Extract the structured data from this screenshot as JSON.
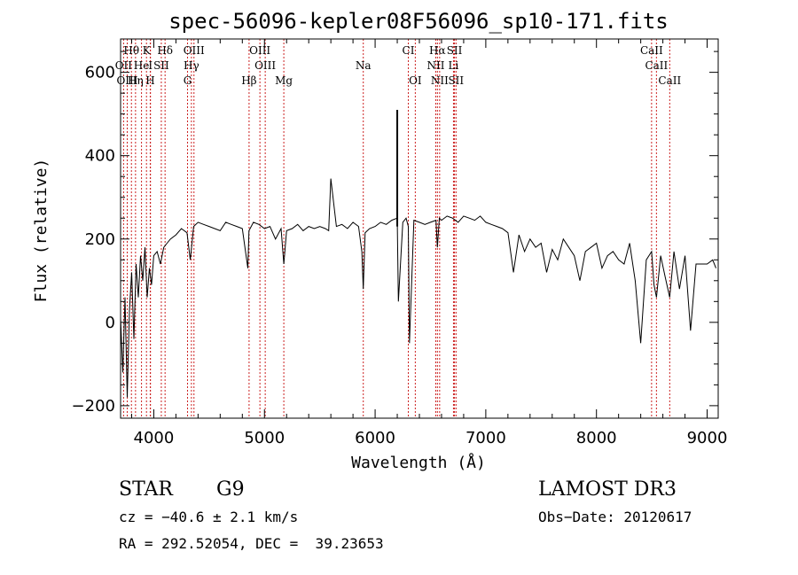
{
  "chart_data": {
    "type": "line",
    "title": "spec-56096-kepler08F56096_sp10-171.fits",
    "xlabel": "Wavelength (Å)",
    "ylabel": "Flux (relative)",
    "xlim": [
      3700,
      9100
    ],
    "ylim": [
      -230,
      680
    ],
    "xticks": [
      4000,
      5000,
      6000,
      7000,
      8000,
      9000
    ],
    "yticks": [
      -200,
      0,
      200,
      400,
      600
    ],
    "series": [
      {
        "name": "flux",
        "x": [
          3700,
          3720,
          3740,
          3760,
          3780,
          3800,
          3820,
          3840,
          3860,
          3880,
          3900,
          3920,
          3940,
          3960,
          3980,
          4000,
          4030,
          4060,
          4090,
          4120,
          4150,
          4200,
          4250,
          4300,
          4330,
          4360,
          4400,
          4450,
          4500,
          4550,
          4600,
          4650,
          4700,
          4750,
          4800,
          4850,
          4860,
          4900,
          4950,
          5000,
          5050,
          5100,
          5150,
          5175,
          5200,
          5250,
          5300,
          5350,
          5400,
          5450,
          5500,
          5550,
          5580,
          5600,
          5650,
          5700,
          5750,
          5800,
          5850,
          5880,
          5893,
          5910,
          5950,
          6000,
          6050,
          6100,
          6150,
          6200,
          6210,
          6250,
          6280,
          6300,
          6310,
          6350,
          6400,
          6450,
          6500,
          6550,
          6563,
          6580,
          6600,
          6650,
          6700,
          6750,
          6800,
          6850,
          6900,
          6950,
          7000,
          7050,
          7100,
          7150,
          7200,
          7250,
          7300,
          7350,
          7400,
          7450,
          7500,
          7550,
          7600,
          7650,
          7700,
          7750,
          7800,
          7850,
          7900,
          7950,
          8000,
          8050,
          8100,
          8150,
          8200,
          8250,
          8300,
          8350,
          8400,
          8450,
          8498,
          8520,
          8542,
          8580,
          8620,
          8662,
          8700,
          8750,
          8800,
          8850,
          8900,
          8950,
          9000,
          9050,
          9080
        ],
        "y": [
          10,
          -120,
          60,
          -180,
          30,
          120,
          -40,
          140,
          60,
          160,
          100,
          180,
          60,
          130,
          90,
          160,
          170,
          140,
          180,
          190,
          200,
          210,
          225,
          215,
          150,
          230,
          240,
          235,
          230,
          225,
          220,
          240,
          235,
          230,
          225,
          130,
          220,
          240,
          235,
          225,
          230,
          200,
          225,
          140,
          220,
          225,
          235,
          220,
          230,
          225,
          230,
          225,
          220,
          345,
          230,
          235,
          225,
          240,
          230,
          170,
          80,
          215,
          225,
          230,
          240,
          235,
          245,
          250,
          50,
          240,
          250,
          230,
          -50,
          245,
          240,
          235,
          240,
          245,
          180,
          250,
          245,
          255,
          250,
          240,
          255,
          250,
          245,
          255,
          240,
          235,
          230,
          225,
          215,
          120,
          210,
          170,
          200,
          180,
          190,
          120,
          175,
          150,
          200,
          180,
          160,
          100,
          170,
          180,
          190,
          130,
          160,
          170,
          150,
          140,
          190,
          100,
          -50,
          150,
          170,
          90,
          60,
          160,
          110,
          60,
          170,
          80,
          160,
          -20,
          140,
          140,
          140,
          150,
          130
        ]
      }
    ],
    "spike": {
      "x": 6200,
      "y": 510
    },
    "emission_lines": [
      {
        "label": "Hθ",
        "x": 3798,
        "row": 0
      },
      {
        "label": "K",
        "x": 3934,
        "row": 0
      },
      {
        "label": "Hδ",
        "x": 4102,
        "row": 0
      },
      {
        "label": "OIII",
        "x": 4363,
        "row": 0
      },
      {
        "label": "OIII",
        "x": 4959,
        "row": 0
      },
      {
        "label": "CI",
        "x": 6300,
        "row": 0
      },
      {
        "label": "Hα",
        "x": 6563,
        "row": 0
      },
      {
        "label": "SII",
        "x": 6717,
        "row": 0
      },
      {
        "label": "CaII",
        "x": 8498,
        "row": 0
      },
      {
        "label": "OII",
        "x": 3727,
        "row": 1
      },
      {
        "label": "He",
        "x": 3889,
        "row": 1
      },
      {
        "label": "I",
        "x": 3970,
        "row": 1
      },
      {
        "label": "SII",
        "x": 4068,
        "row": 1
      },
      {
        "label": "Hγ",
        "x": 4340,
        "row": 1
      },
      {
        "label": "OIII",
        "x": 5007,
        "row": 1
      },
      {
        "label": "Na",
        "x": 5893,
        "row": 1
      },
      {
        "label": "NII",
        "x": 6548,
        "row": 1
      },
      {
        "label": "Li",
        "x": 6708,
        "row": 1
      },
      {
        "label": "CaII",
        "x": 8542,
        "row": 1
      },
      {
        "label": "OIII",
        "x": 3760,
        "row": 2
      },
      {
        "label": "Hη",
        "x": 3835,
        "row": 2
      },
      {
        "label": "H",
        "x": 3968,
        "row": 2
      },
      {
        "label": "G",
        "x": 4305,
        "row": 2
      },
      {
        "label": "Hβ",
        "x": 4861,
        "row": 2
      },
      {
        "label": "Mg",
        "x": 5175,
        "row": 2
      },
      {
        "label": "OI",
        "x": 6363,
        "row": 2
      },
      {
        "label": "NII",
        "x": 6583,
        "row": 2
      },
      {
        "label": "SII",
        "x": 6731,
        "row": 2
      },
      {
        "label": "CaII",
        "x": 8662,
        "row": 2
      }
    ]
  },
  "info": {
    "object_class": "STAR",
    "subclass": "G9",
    "survey": "LAMOST DR3",
    "cz": "cz = −40.6 ± 2.1 km/s",
    "obs_date": "Obs−Date: 20120617",
    "coords": "RA = 292.52054, DEC =  39.23653"
  },
  "colors": {
    "line_marker": "#cc2222",
    "spectrum": "#000000"
  }
}
